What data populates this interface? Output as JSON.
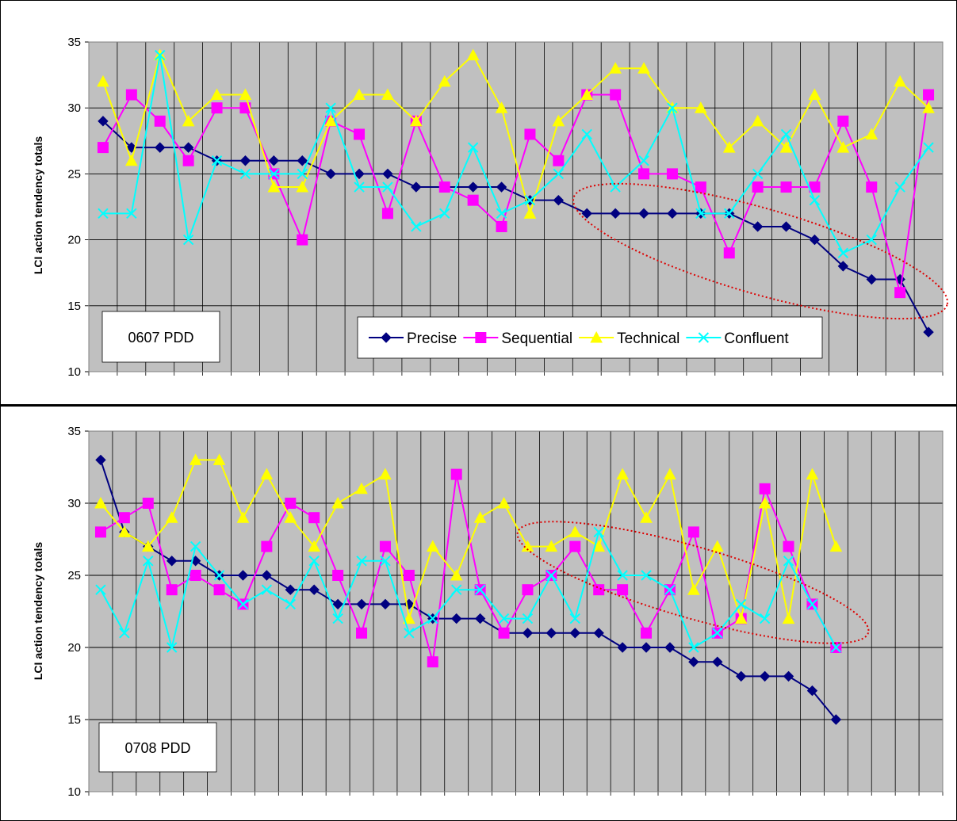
{
  "chart_data": [
    {
      "type": "line",
      "label_box": "0607 PDD",
      "ylabel": "LCI action tendency totals",
      "ylim": [
        10,
        35
      ],
      "yticks": [
        10,
        15,
        20,
        25,
        30,
        35
      ],
      "grid": true,
      "legend_position": "bottom-right",
      "x": [
        1,
        2,
        3,
        4,
        5,
        6,
        7,
        8,
        9,
        10,
        11,
        12,
        13,
        14,
        15,
        16,
        17,
        18,
        19,
        20,
        21,
        22,
        23,
        24,
        25,
        26,
        27,
        28,
        29,
        30
      ],
      "series": [
        {
          "name": "Precise",
          "color": "#000080",
          "marker": "diamond",
          "values": [
            29,
            27,
            27,
            27,
            26,
            26,
            26,
            26,
            25,
            25,
            25,
            24,
            24,
            24,
            24,
            23,
            23,
            22,
            22,
            22,
            22,
            22,
            22,
            21,
            21,
            20,
            18,
            17,
            17,
            13
          ]
        },
        {
          "name": "Sequential",
          "color": "#ff00ff",
          "marker": "square",
          "values": [
            27,
            31,
            29,
            26,
            30,
            30,
            25,
            20,
            29,
            28,
            22,
            29,
            24,
            23,
            21,
            28,
            26,
            31,
            31,
            25,
            25,
            24,
            19,
            24,
            24,
            24,
            29,
            24,
            16,
            31
          ]
        },
        {
          "name": "Technical",
          "color": "#ffff00",
          "marker": "triangle",
          "values": [
            32,
            26,
            34,
            29,
            31,
            31,
            24,
            24,
            29,
            31,
            31,
            29,
            32,
            34,
            30,
            22,
            29,
            31,
            33,
            33,
            30,
            30,
            27,
            29,
            27,
            31,
            27,
            28,
            32,
            30
          ]
        },
        {
          "name": "Confluent",
          "color": "#00ffff",
          "marker": "x",
          "values": [
            22,
            22,
            34,
            20,
            26,
            25,
            25,
            25,
            30,
            24,
            24,
            21,
            22,
            27,
            22,
            23,
            25,
            28,
            24,
            26,
            30,
            22,
            22,
            25,
            28,
            23,
            19,
            20,
            24,
            27
          ]
        }
      ]
    },
    {
      "type": "line",
      "label_box": "0708 PDD",
      "ylabel": "LCI action tendency totals",
      "ylim": [
        10,
        35
      ],
      "yticks": [
        10,
        15,
        20,
        25,
        30,
        35
      ],
      "grid": true,
      "x": [
        1,
        2,
        3,
        4,
        5,
        6,
        7,
        8,
        9,
        10,
        11,
        12,
        13,
        14,
        15,
        16,
        17,
        18,
        19,
        20,
        21,
        22,
        23,
        24,
        25,
        26,
        27,
        28,
        29,
        30,
        31,
        32
      ],
      "series": [
        {
          "name": "Precise",
          "color": "#000080",
          "marker": "diamond",
          "values": [
            33,
            28,
            27,
            26,
            26,
            25,
            25,
            25,
            24,
            24,
            23,
            23,
            23,
            23,
            22,
            22,
            22,
            21,
            21,
            21,
            21,
            21,
            20,
            20,
            20,
            19,
            19,
            18,
            18,
            18,
            17,
            15
          ]
        },
        {
          "name": "Sequential",
          "color": "#ff00ff",
          "marker": "square",
          "values": [
            28,
            29,
            30,
            24,
            25,
            24,
            23,
            27,
            30,
            29,
            25,
            21,
            27,
            25,
            19,
            32,
            24,
            21,
            24,
            25,
            27,
            24,
            24,
            21,
            24,
            28,
            21,
            22,
            31,
            27,
            23,
            20
          ]
        },
        {
          "name": "Technical",
          "color": "#ffff00",
          "marker": "triangle",
          "values": [
            30,
            28,
            27,
            29,
            33,
            33,
            29,
            32,
            29,
            27,
            30,
            31,
            32,
            22,
            27,
            25,
            29,
            30,
            27,
            27,
            28,
            27,
            32,
            29,
            32,
            24,
            27,
            22,
            30,
            22,
            32,
            27
          ]
        },
        {
          "name": "Confluent",
          "color": "#00ffff",
          "marker": "x",
          "values": [
            24,
            21,
            26,
            20,
            27,
            25,
            23,
            24,
            23,
            26,
            22,
            26,
            26,
            21,
            22,
            24,
            24,
            22,
            22,
            25,
            22,
            28,
            25,
            25,
            24,
            20,
            21,
            23,
            22,
            26,
            23,
            20
          ]
        }
      ]
    }
  ]
}
